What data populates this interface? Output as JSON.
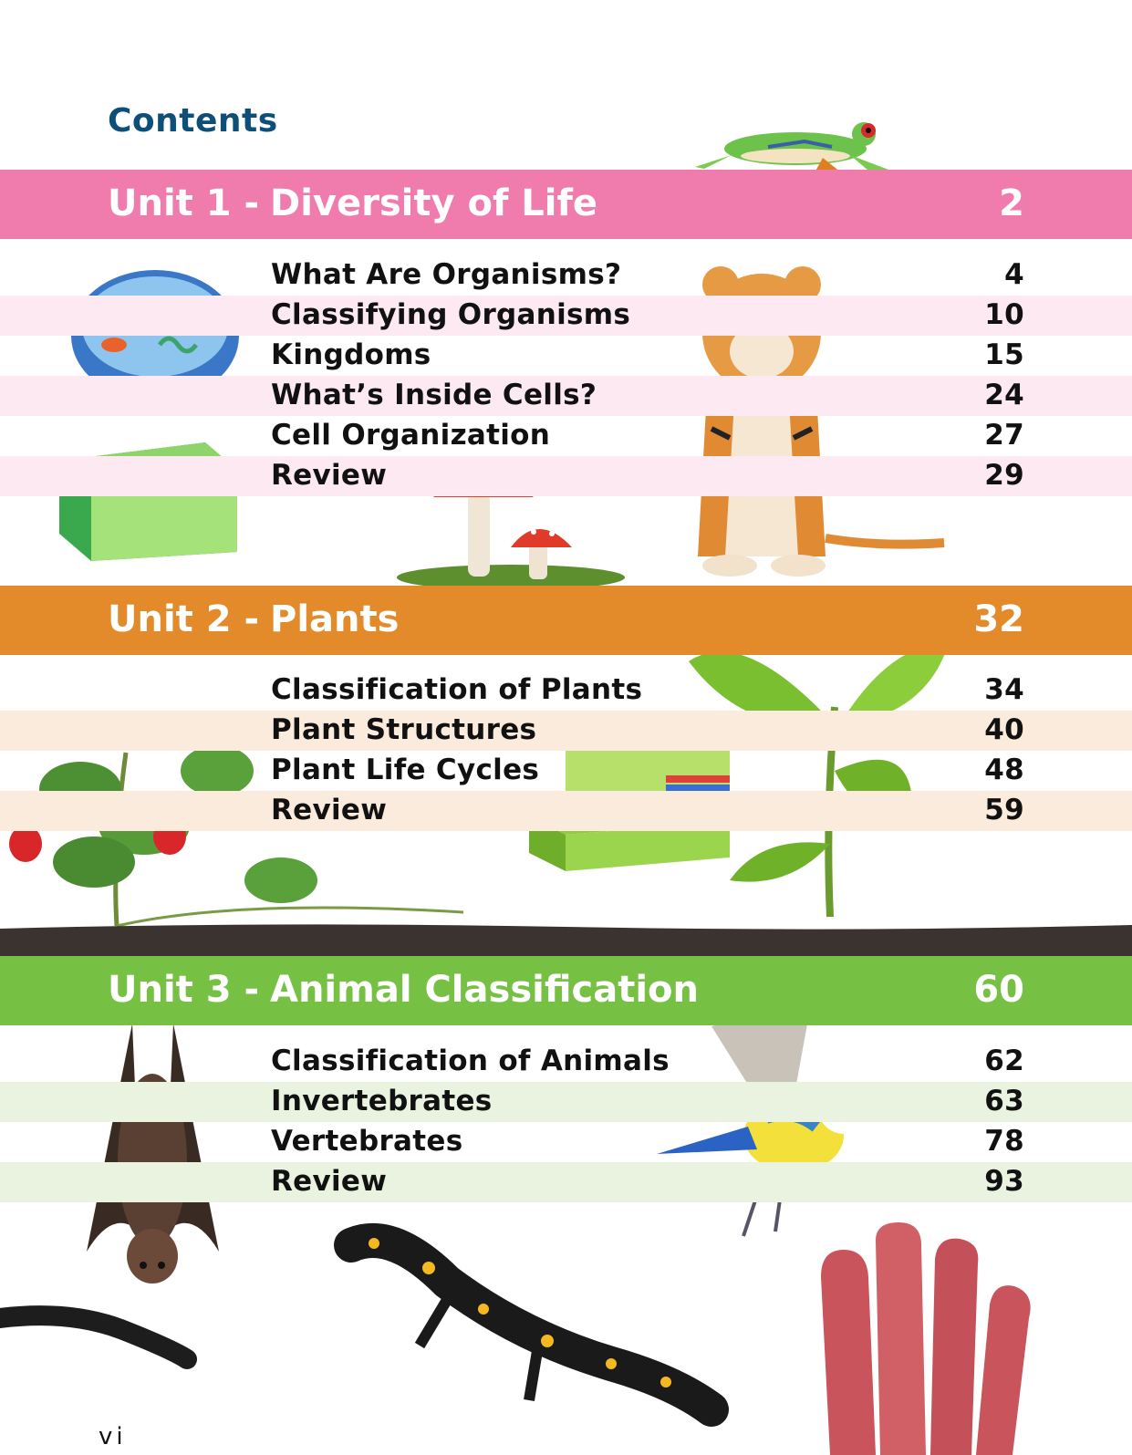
{
  "title": "Contents",
  "units": [
    {
      "label": "Unit 1 -",
      "name": "Diversity of Life",
      "page": "2",
      "color": "#f07bad",
      "stripe": "#fde9f1",
      "lessons": [
        {
          "title": "What Are Organisms?",
          "page": "4"
        },
        {
          "title": "Classifying Organisms",
          "page": "10"
        },
        {
          "title": "Kingdoms",
          "page": "15"
        },
        {
          "title": "What’s Inside Cells?",
          "page": "24"
        },
        {
          "title": "Cell Organization",
          "page": "27"
        },
        {
          "title": "Review",
          "page": "29"
        }
      ]
    },
    {
      "label": "Unit 2 -",
      "name": "Plants",
      "page": "32",
      "color": "#e38a2a",
      "stripe": "#fbebdc",
      "lessons": [
        {
          "title": "Classification of Plants",
          "page": "34"
        },
        {
          "title": "Plant Structures",
          "page": "40"
        },
        {
          "title": "Plant Life Cycles",
          "page": "48"
        },
        {
          "title": "Review",
          "page": "59"
        }
      ]
    },
    {
      "label": "Unit 3 -",
      "name": "Animal Classification",
      "page": "60",
      "color": "#76c043",
      "stripe": "#e9f3df",
      "lessons": [
        {
          "title": "Classification of Animals",
          "page": "62"
        },
        {
          "title": "Invertebrates",
          "page": "63"
        },
        {
          "title": "Vertebrates",
          "page": "78"
        },
        {
          "title": "Review",
          "page": "93"
        }
      ]
    }
  ],
  "footer": "vi",
  "icons": [
    "frog-icon",
    "animal-cell-icon",
    "plant-cell-icon",
    "mushroom-icon",
    "tiger-icon",
    "strawberry-plant-icon",
    "leaf-cross-section-icon",
    "seedling-icon",
    "soil-strip",
    "bat-icon",
    "bird-icon",
    "millipede-icon",
    "salamander-icon",
    "coral-icon"
  ]
}
